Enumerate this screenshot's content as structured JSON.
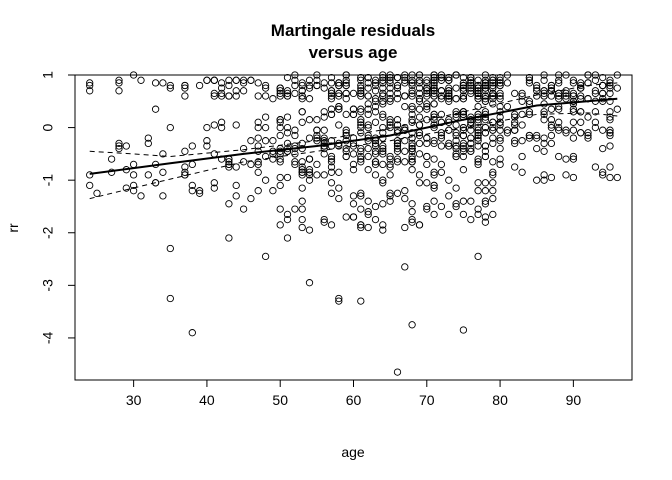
{
  "chart_data": {
    "type": "scatter",
    "title": [
      "Martingale residuals",
      "versus age"
    ],
    "xlabel": "age",
    "ylabel": "rr",
    "xlim": [
      22,
      98
    ],
    "ylim": [
      -4.8,
      1.0
    ],
    "x_ticks": [
      30,
      40,
      50,
      60,
      70,
      80,
      90
    ],
    "y_ticks": [
      -4,
      -3,
      -2,
      -1,
      0,
      1
    ],
    "grid": false,
    "marker": "open-circle",
    "point_count_approx": 1000,
    "point_density": [
      {
        "age_range": [
          24,
          40
        ],
        "count": 45,
        "resid_range": [
          -1.3,
          1.0
        ]
      },
      {
        "age_range": [
          40,
          50
        ],
        "count": 80,
        "resid_range": [
          -1.6,
          0.9
        ]
      },
      {
        "age_range": [
          50,
          60
        ],
        "count": 170,
        "resid_range": [
          -2.1,
          1.0
        ]
      },
      {
        "age_range": [
          60,
          70
        ],
        "count": 230,
        "resid_range": [
          -2.0,
          1.0
        ]
      },
      {
        "age_range": [
          70,
          80
        ],
        "count": 300,
        "resid_range": [
          -1.8,
          1.0
        ]
      },
      {
        "age_range": [
          80,
          96
        ],
        "count": 175,
        "resid_range": [
          -1.0,
          1.0
        ]
      }
    ],
    "series": [
      {
        "style": "points",
        "values": [
          [
            24,
            -0.9
          ],
          [
            24,
            -1.1
          ],
          [
            28,
            0.7
          ],
          [
            29,
            -0.35
          ],
          [
            30,
            1.0
          ],
          [
            30,
            -1.2
          ],
          [
            30,
            -0.7
          ],
          [
            31,
            -1.3
          ],
          [
            33,
            0.35
          ],
          [
            33,
            -1.05
          ],
          [
            35,
            0.0
          ],
          [
            35,
            -2.3
          ],
          [
            35,
            -3.25
          ],
          [
            37,
            0.75
          ],
          [
            38,
            -3.9
          ],
          [
            40,
            0.0
          ],
          [
            43,
            -2.1
          ],
          [
            48,
            -2.45
          ],
          [
            54,
            -2.95
          ],
          [
            58,
            -3.25
          ],
          [
            58,
            -3.3
          ],
          [
            61,
            -3.3
          ],
          [
            66,
            -4.65
          ],
          [
            67,
            -2.65
          ],
          [
            68,
            -3.75
          ],
          [
            75,
            -3.85
          ],
          [
            77,
            -2.45
          ],
          [
            95,
            -0.75
          ]
        ]
      },
      {
        "style": "smooth-solid",
        "values": [
          [
            24,
            -0.88
          ],
          [
            35,
            -0.68
          ],
          [
            45,
            -0.5
          ],
          [
            55,
            -0.35
          ],
          [
            65,
            -0.15
          ],
          [
            75,
            0.15
          ],
          [
            85,
            0.42
          ],
          [
            96,
            0.55
          ]
        ]
      },
      {
        "style": "band-dashed-upper",
        "values": [
          [
            24,
            -0.45
          ],
          [
            30,
            -0.5
          ],
          [
            35,
            -0.55
          ],
          [
            45,
            -0.42
          ],
          [
            55,
            -0.25
          ],
          [
            65,
            -0.02
          ],
          [
            75,
            0.3
          ],
          [
            85,
            0.62
          ],
          [
            92,
            0.8
          ],
          [
            96,
            0.85
          ]
        ]
      },
      {
        "style": "band-dashed-lower",
        "values": [
          [
            24,
            -1.35
          ],
          [
            35,
            -0.98
          ],
          [
            45,
            -0.65
          ],
          [
            55,
            -0.45
          ],
          [
            65,
            -0.25
          ],
          [
            75,
            0.0
          ],
          [
            85,
            0.25
          ],
          [
            92,
            0.28
          ],
          [
            96,
            0.22
          ]
        ]
      }
    ]
  }
}
